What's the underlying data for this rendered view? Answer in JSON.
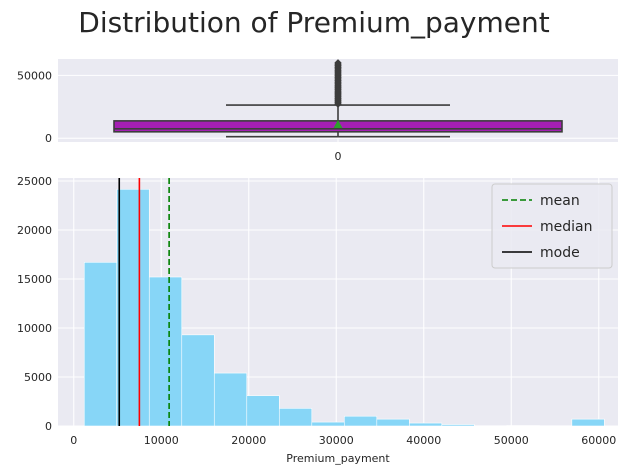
{
  "chart_data": [
    {
      "type": "box",
      "title": "Distribution of Premium_payment",
      "x_tick_labels": [
        "0"
      ],
      "yticks": [
        0,
        50000
      ],
      "ylim": [
        -3000,
        63000
      ],
      "box": {
        "whisker_low": 1200,
        "q1": 5100,
        "median": 7500,
        "q3": 13800,
        "whisker_high": 26400,
        "mean": 10900,
        "outliers": [
          27000,
          28500,
          30000,
          31500,
          33000,
          34500,
          36000,
          37500,
          39000,
          40500,
          42000,
          44000,
          46000,
          48000,
          50000,
          52000,
          54000,
          56000,
          58000,
          60000
        ],
        "color": "#a41fb3",
        "mean_marker_color": "#2ca02c"
      },
      "xlim": [
        -0.5,
        0.5
      ],
      "box_width": 0.8,
      "whisker_width": 0.4
    },
    {
      "type": "histogram",
      "xlabel": "Premium_payment",
      "xticks": [
        0,
        10000,
        20000,
        30000,
        40000,
        50000,
        60000
      ],
      "yticks": [
        0,
        5000,
        10000,
        15000,
        20000,
        25000
      ],
      "xlim": [
        -1800,
        62200
      ],
      "ylim": [
        0,
        25300
      ],
      "bin_edges": [
        1200,
        4915,
        8630,
        12345,
        16060,
        19775,
        23490,
        27205,
        30920,
        34635,
        38350,
        42065,
        45780,
        49495,
        53210,
        56925,
        60640
      ],
      "counts": [
        16700,
        24150,
        15200,
        9300,
        5400,
        3100,
        1800,
        400,
        1000,
        700,
        300,
        150,
        30,
        50,
        30,
        700
      ],
      "bar_color": "#87d6f7",
      "lines": [
        {
          "label": "mean",
          "value": 10900,
          "color": "#008000",
          "style": "dashed"
        },
        {
          "label": "median",
          "value": 7500,
          "color": "#ff0000",
          "style": "solid"
        },
        {
          "label": "mode",
          "value": 5200,
          "color": "#000000",
          "style": "solid"
        }
      ],
      "legend_position": "top-right"
    }
  ],
  "colors": {
    "axes_bg": "#eaeaf2",
    "grid": "#ffffff"
  }
}
